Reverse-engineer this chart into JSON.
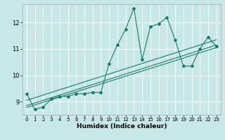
{
  "title": "",
  "xlabel": "Humidex (Indice chaleur)",
  "ylabel": "",
  "bg_color": "#c8e8e8",
  "grid_color": "#ffffff",
  "line_color": "#1a7a6a",
  "xlim": [
    -0.5,
    23.5
  ],
  "ylim": [
    8.5,
    12.7
  ],
  "xticks": [
    0,
    1,
    2,
    3,
    4,
    5,
    6,
    7,
    8,
    9,
    10,
    11,
    12,
    13,
    14,
    15,
    16,
    17,
    18,
    19,
    20,
    21,
    22,
    23
  ],
  "yticks": [
    9,
    10,
    11,
    12
  ],
  "series": [
    [
      0,
      9.3
    ],
    [
      1,
      8.7
    ],
    [
      2,
      8.8
    ],
    [
      3,
      9.1
    ],
    [
      4,
      9.2
    ],
    [
      5,
      9.2
    ],
    [
      6,
      9.3
    ],
    [
      7,
      9.3
    ],
    [
      8,
      9.35
    ],
    [
      9,
      9.35
    ],
    [
      10,
      10.45
    ],
    [
      11,
      11.15
    ],
    [
      12,
      11.75
    ],
    [
      13,
      12.55
    ],
    [
      14,
      10.6
    ],
    [
      15,
      11.85
    ],
    [
      16,
      11.95
    ],
    [
      17,
      12.2
    ],
    [
      18,
      11.35
    ],
    [
      19,
      10.35
    ],
    [
      20,
      10.35
    ],
    [
      21,
      11.0
    ],
    [
      22,
      11.45
    ],
    [
      23,
      11.1
    ]
  ],
  "linear1": [
    [
      0,
      8.78
    ],
    [
      23,
      11.05
    ]
  ],
  "linear2": [
    [
      0,
      8.85
    ],
    [
      23,
      11.15
    ]
  ],
  "linear3": [
    [
      0,
      9.05
    ],
    [
      23,
      11.35
    ]
  ]
}
